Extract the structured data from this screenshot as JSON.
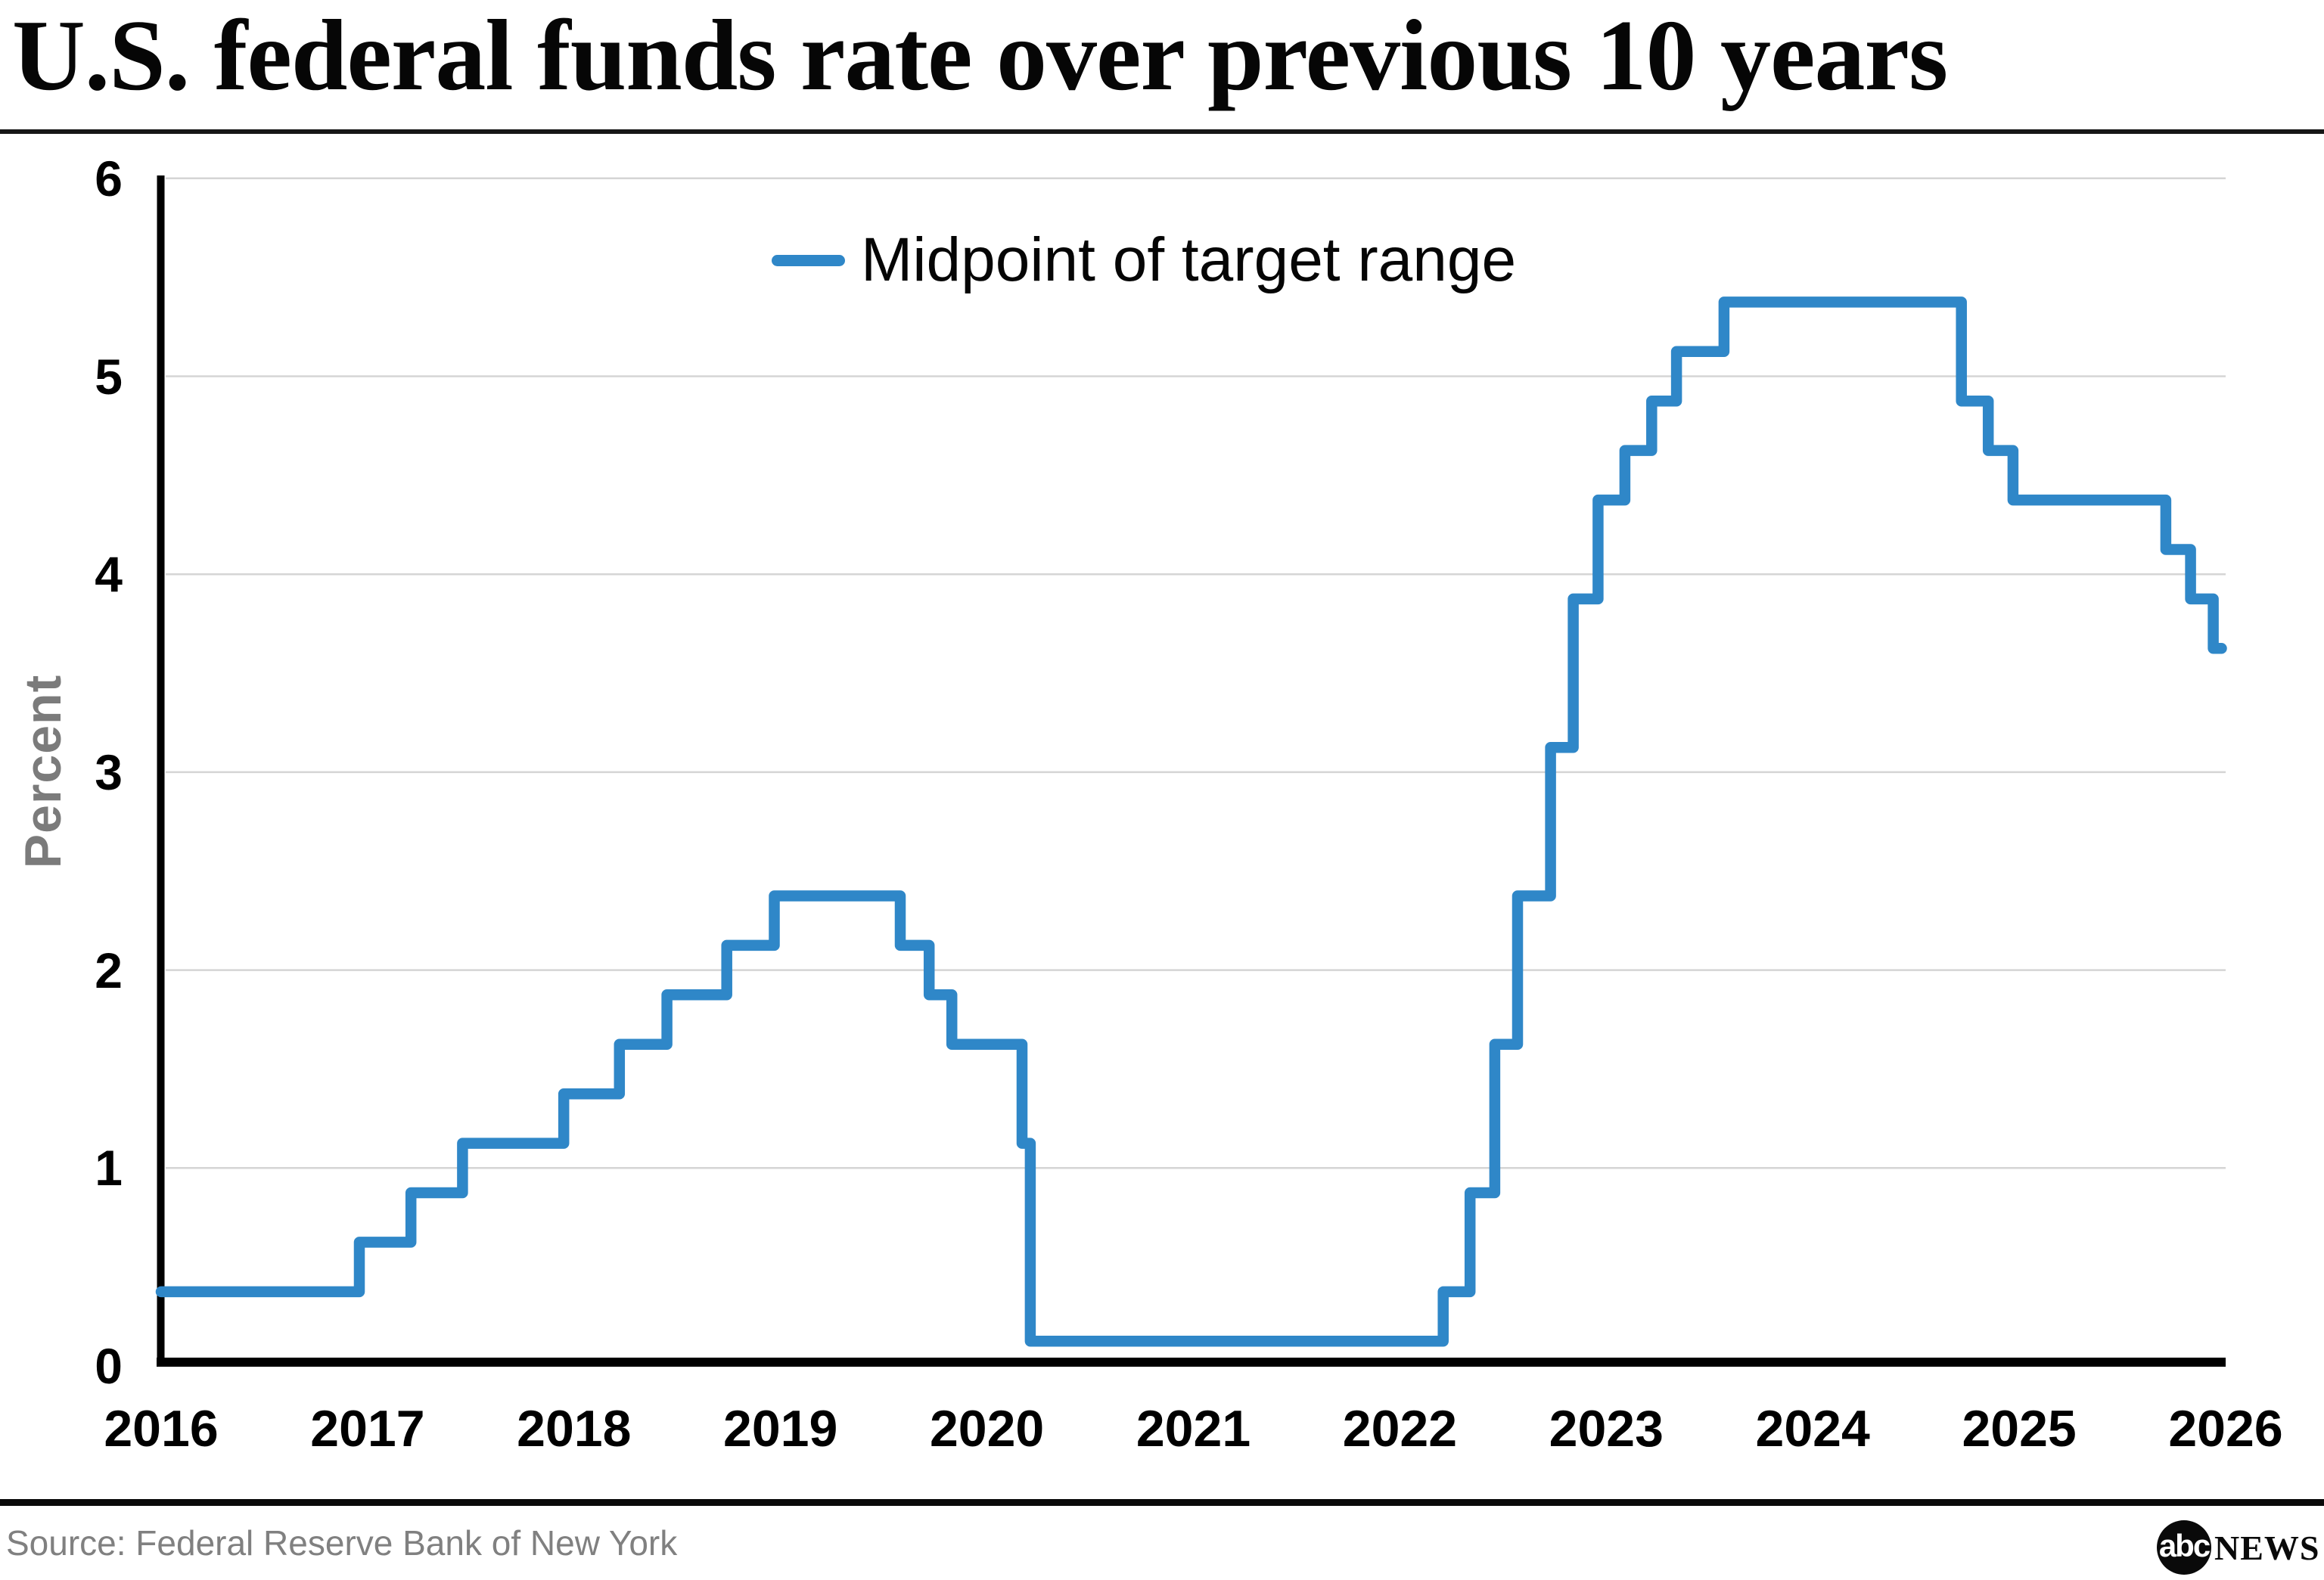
{
  "title": "U.S. federal funds rate over previous 10 years",
  "legend": {
    "label": "Midpoint of target range"
  },
  "axes": {
    "y_label": "Percent",
    "y_ticks": [
      0,
      1,
      2,
      3,
      4,
      5,
      6
    ],
    "x_ticks": [
      2016,
      2017,
      2018,
      2019,
      2020,
      2021,
      2022,
      2023,
      2024,
      2025,
      2026
    ]
  },
  "footer": {
    "source": "Source: Federal Reserve Bank of New York",
    "logo_circle": "abc",
    "logo_wordmark": "NEWS"
  },
  "colors": {
    "line": "#2f87c8",
    "grid": "#d5d5d5",
    "axis": "#000000",
    "tick_text": "#000000",
    "muted_text": "#7b7b7b"
  },
  "chart_data": {
    "type": "line",
    "step_mode": "after",
    "title": "U.S. federal funds rate over previous 10 years",
    "xlabel": "",
    "ylabel": "Percent",
    "xlim": [
      2016,
      2026
    ],
    "ylim": [
      0,
      6
    ],
    "grid": "horizontal",
    "legend_position": "top-center-inside",
    "series": [
      {
        "name": "Midpoint of target range",
        "color": "#2f87c8",
        "x_end": 2025.98,
        "points": [
          [
            2016.0,
            0.375
          ],
          [
            2016.96,
            0.625
          ],
          [
            2017.21,
            0.875
          ],
          [
            2017.46,
            1.125
          ],
          [
            2017.95,
            1.375
          ],
          [
            2018.22,
            1.625
          ],
          [
            2018.45,
            1.875
          ],
          [
            2018.74,
            2.125
          ],
          [
            2018.97,
            2.375
          ],
          [
            2019.58,
            2.125
          ],
          [
            2019.72,
            1.875
          ],
          [
            2019.83,
            1.625
          ],
          [
            2020.17,
            1.125
          ],
          [
            2020.21,
            0.125
          ],
          [
            2022.21,
            0.375
          ],
          [
            2022.34,
            0.875
          ],
          [
            2022.46,
            1.625
          ],
          [
            2022.57,
            2.375
          ],
          [
            2022.73,
            3.125
          ],
          [
            2022.84,
            3.875
          ],
          [
            2022.96,
            4.375
          ],
          [
            2023.09,
            4.625
          ],
          [
            2023.22,
            4.875
          ],
          [
            2023.34,
            5.125
          ],
          [
            2023.57,
            5.375
          ],
          [
            2024.72,
            4.875
          ],
          [
            2024.85,
            4.625
          ],
          [
            2024.97,
            4.375
          ],
          [
            2025.71,
            4.125
          ],
          [
            2025.83,
            3.875
          ],
          [
            2025.94,
            3.625
          ]
        ]
      }
    ]
  }
}
